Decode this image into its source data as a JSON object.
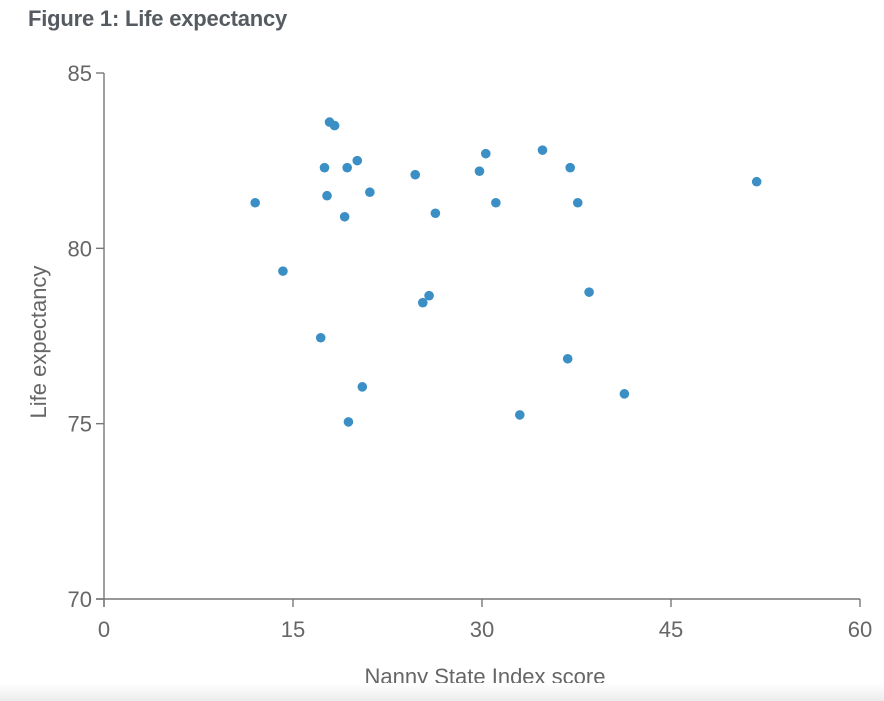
{
  "figure": {
    "title": "Figure 1: Life expectancy"
  },
  "colors": {
    "point": "#3b8fc4",
    "axis": "#777777",
    "text": "#666666"
  },
  "chart_data": {
    "type": "scatter",
    "title": "Figure 1: Life expectancy",
    "xlabel": "Nanny State Index score",
    "ylabel": "Life expectancy",
    "xlim": [
      0,
      60
    ],
    "ylim": [
      70,
      85
    ],
    "xticks": [
      0,
      15,
      30,
      45,
      60
    ],
    "yticks": [
      70,
      75,
      80,
      85
    ],
    "grid": false,
    "legend": "none",
    "series": [
      {
        "points": [
          {
            "x": 12.0,
            "y": 81.3
          },
          {
            "x": 14.2,
            "y": 79.35
          },
          {
            "x": 17.2,
            "y": 77.45
          },
          {
            "x": 17.5,
            "y": 82.3
          },
          {
            "x": 17.7,
            "y": 81.5
          },
          {
            "x": 17.9,
            "y": 83.6
          },
          {
            "x": 18.3,
            "y": 83.5
          },
          {
            "x": 19.1,
            "y": 80.9
          },
          {
            "x": 19.3,
            "y": 82.3
          },
          {
            "x": 19.4,
            "y": 75.05
          },
          {
            "x": 20.1,
            "y": 82.5
          },
          {
            "x": 20.5,
            "y": 76.05
          },
          {
            "x": 21.1,
            "y": 81.6
          },
          {
            "x": 24.7,
            "y": 82.1
          },
          {
            "x": 25.3,
            "y": 78.45
          },
          {
            "x": 25.8,
            "y": 78.65
          },
          {
            "x": 26.3,
            "y": 81.0
          },
          {
            "x": 29.8,
            "y": 82.2
          },
          {
            "x": 30.3,
            "y": 82.7
          },
          {
            "x": 31.1,
            "y": 81.3
          },
          {
            "x": 33.0,
            "y": 75.25
          },
          {
            "x": 34.8,
            "y": 82.8
          },
          {
            "x": 36.8,
            "y": 76.85
          },
          {
            "x": 37.0,
            "y": 82.3
          },
          {
            "x": 37.6,
            "y": 81.3
          },
          {
            "x": 38.5,
            "y": 78.75
          },
          {
            "x": 41.3,
            "y": 75.85
          },
          {
            "x": 51.8,
            "y": 81.9
          }
        ]
      }
    ]
  }
}
